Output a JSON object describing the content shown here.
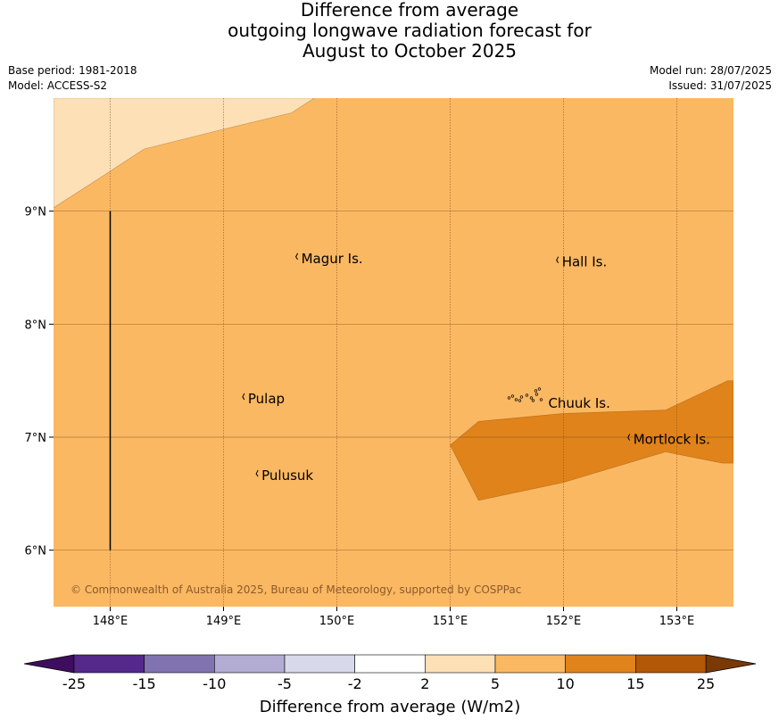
{
  "title": {
    "line1": "Difference from average",
    "line2": "outgoing longwave radiation forecast for",
    "line3": "August to October 2025"
  },
  "meta": {
    "base_period": "Base period: 1981-2018",
    "model": "Model: ACCESS-S2",
    "model_run": "Model run: 28/07/2025",
    "issued": "Issued: 31/07/2025"
  },
  "map": {
    "lon_range": [
      147.5,
      153.5
    ],
    "lat_range": [
      5.5,
      10.0
    ],
    "lon_ticks": [
      {
        "value": 148,
        "label": "148°E"
      },
      {
        "value": 149,
        "label": "149°E"
      },
      {
        "value": 150,
        "label": "150°E"
      },
      {
        "value": 151,
        "label": "151°E"
      },
      {
        "value": 152,
        "label": "152°E"
      },
      {
        "value": 153,
        "label": "153°E"
      }
    ],
    "lat_ticks": [
      {
        "value": 9,
        "label": "9°N"
      },
      {
        "value": 8,
        "label": "8°N"
      },
      {
        "value": 7,
        "label": "7°N"
      },
      {
        "value": 6,
        "label": "6°N"
      }
    ],
    "base_color": "#fbb862",
    "regions": [
      {
        "range": "2 to 5",
        "color": "#fde0b6",
        "points": [
          [
            147.5,
            10.0
          ],
          [
            149.8,
            10.0
          ],
          [
            149.6,
            9.87
          ],
          [
            148.9,
            9.7
          ],
          [
            148.3,
            9.55
          ],
          [
            147.95,
            9.32
          ],
          [
            147.5,
            9.03
          ]
        ]
      },
      {
        "range": "10 to 15",
        "color": "#e0831a",
        "points": [
          [
            151.0,
            6.93
          ],
          [
            151.25,
            7.14
          ],
          [
            152.0,
            7.21
          ],
          [
            152.9,
            7.24
          ],
          [
            153.45,
            7.5
          ],
          [
            153.5,
            7.5
          ],
          [
            153.5,
            6.77
          ],
          [
            153.4,
            6.77
          ],
          [
            152.9,
            6.87
          ],
          [
            152.0,
            6.6
          ],
          [
            151.25,
            6.44
          ]
        ]
      }
    ],
    "islands": [
      {
        "name": "Magur Is.",
        "lon": 149.67,
        "lat": 8.58
      },
      {
        "name": "Hall Is.",
        "lon": 151.97,
        "lat": 8.55
      },
      {
        "name": "Pulap",
        "lon": 149.2,
        "lat": 7.34
      },
      {
        "name": "Chuuk Is.",
        "lon": 151.85,
        "lat": 7.3
      },
      {
        "name": "Mortlock Is.",
        "lon": 152.6,
        "lat": 6.98
      },
      {
        "name": "Pulusuk",
        "lon": 149.32,
        "lat": 6.66
      }
    ],
    "boundary_line": {
      "lon": 148.0,
      "lat_from": 6.0,
      "lat_to": 9.0
    },
    "copyright": "© Commonwealth of Australia 2025, Bureau of Meteorology, supported by COSPPac"
  },
  "legend": {
    "title": "Difference from average (W/m2)",
    "under_color": "#3f0d5f",
    "over_color": "#7a3a06",
    "bins": [
      {
        "range": "-25 to -15",
        "color": "#55288c"
      },
      {
        "range": "-15 to -10",
        "color": "#8073b0"
      },
      {
        "range": "-10 to -5",
        "color": "#b3acd3"
      },
      {
        "range": "-5 to -2",
        "color": "#d9d9ec"
      },
      {
        "range": "-2 to 2",
        "color": "#ffffff"
      },
      {
        "range": "2 to 5",
        "color": "#fde0b6"
      },
      {
        "range": "5 to 10",
        "color": "#fbb862"
      },
      {
        "range": "10 to 15",
        "color": "#e0831a"
      },
      {
        "range": "15 to 25",
        "color": "#b35806"
      }
    ],
    "tick_labels": [
      "-25",
      "-15",
      "-10",
      "-5",
      "-2",
      "2",
      "5",
      "10",
      "15",
      "25"
    ]
  }
}
